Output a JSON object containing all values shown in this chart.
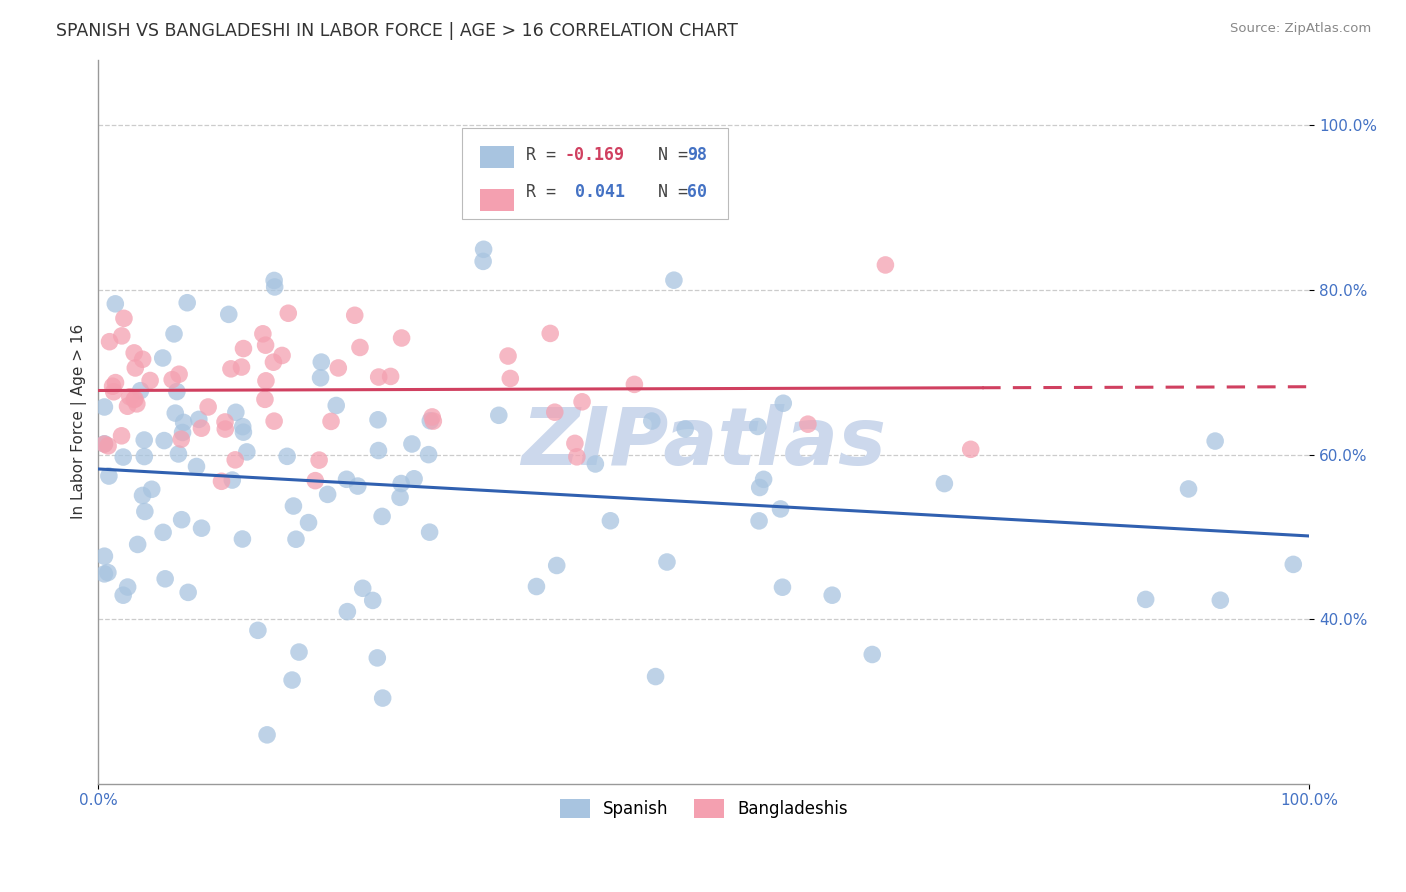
{
  "title": "SPANISH VS BANGLADESHI IN LABOR FORCE | AGE > 16 CORRELATION CHART",
  "source_text": "Source: ZipAtlas.com",
  "ylabel": "In Labor Force | Age > 16",
  "xlim": [
    0.0,
    1.0
  ],
  "ylim": [
    0.2,
    1.08
  ],
  "x_tick_positions": [
    0.0,
    1.0
  ],
  "x_tick_labels": [
    "0.0%",
    "100.0%"
  ],
  "y_tick_positions": [
    0.4,
    0.6,
    0.8,
    1.0
  ],
  "y_tick_labels": [
    "40.0%",
    "60.0%",
    "80.0%",
    "100.0%"
  ],
  "legend_R_spanish": "-0.169",
  "legend_N_spanish": "98",
  "legend_R_bangladeshi": "0.041",
  "legend_N_bangladeshi": "60",
  "spanish_color": "#a8c4e0",
  "bangladeshi_color": "#f4a0b0",
  "trend_spanish_color": "#3060b0",
  "trend_bangladeshi_color": "#d04060",
  "watermark_color": "#ccd8ec",
  "background_color": "#ffffff",
  "grid_color": "#cccccc",
  "title_color": "#333333",
  "source_color": "#888888",
  "tick_color": "#4472c4",
  "legend_text_color_R": "#333333",
  "legend_text_color_N_spanish": "#4472c4",
  "legend_text_color_N_bangladeshi": "#4472c4",
  "legend_text_color_R_spanish_val": "#d04060",
  "legend_text_color_R_bangladeshi_val": "#4472c4"
}
